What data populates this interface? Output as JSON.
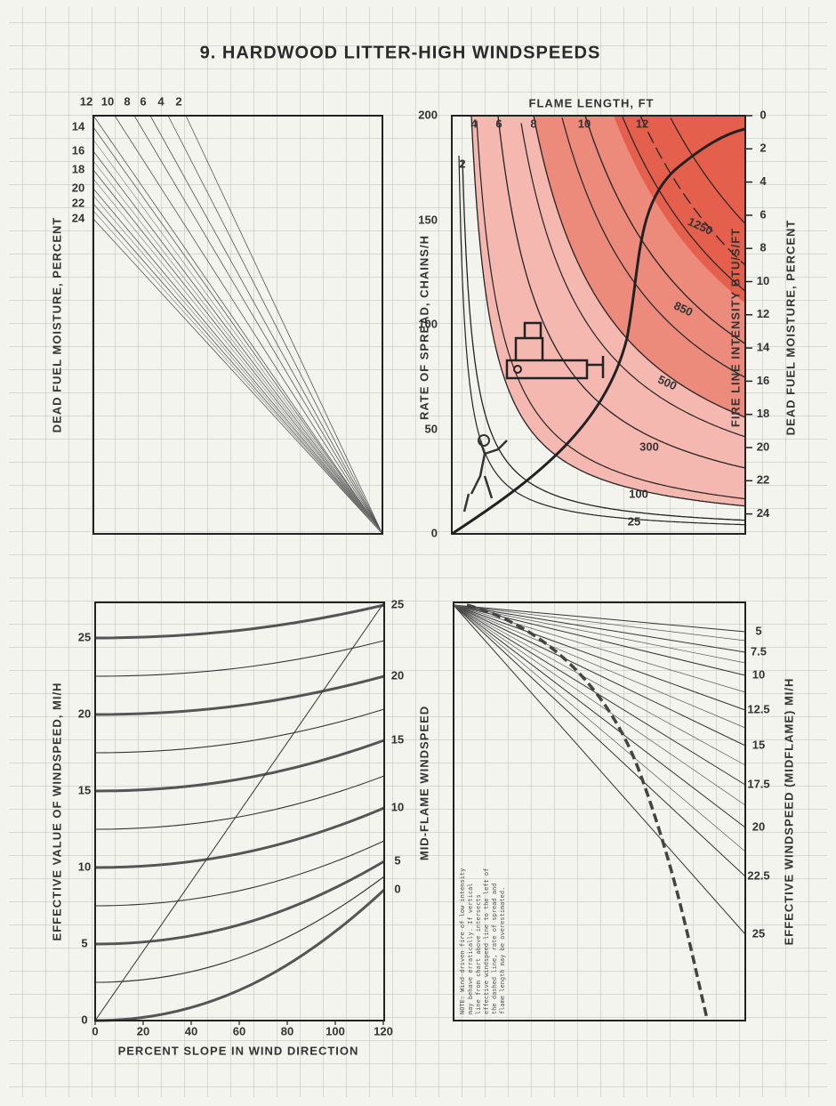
{
  "title": "9. HARDWOOD LITTER-HIGH WINDSPEEDS",
  "panels": [
    {
      "axis_title": "DEAD FUEL MOISTURE, PERCENT",
      "top_labels": [
        "12",
        "10",
        "8",
        "6",
        "4",
        "2"
      ],
      "side_labels": [
        "14",
        "16",
        "18",
        "20",
        "22",
        "24"
      ]
    },
    {
      "axis_title": "RATE OF SPREAD, CHAINS/H",
      "top_title": "FLAME LENGTH, FT",
      "left_ticks": [
        "0",
        "50",
        "100",
        "150",
        "200"
      ],
      "flame_labels": [
        "2",
        "4",
        "6",
        "8",
        "10",
        "12"
      ],
      "intensity_labels": [
        "25",
        "100",
        "300",
        "500",
        "850",
        "1250"
      ],
      "intensity_title": "FIRE LINE INTENSITY BTU/S/FT",
      "right_title": "DEAD FUEL MOISTURE, PERCENT",
      "right_ticks": [
        "0",
        "2",
        "4",
        "6",
        "8",
        "10",
        "12",
        "14",
        "16",
        "18",
        "20",
        "22",
        "24"
      ]
    },
    {
      "y_title": "EFFECTIVE VALUE OF WINDSPEED, MI/H",
      "x_title": "PERCENT SLOPE IN WIND DIRECTION",
      "y_ticks": [
        "0",
        "5",
        "10",
        "15",
        "20",
        "25"
      ],
      "x_ticks": [
        "0",
        "20",
        "40",
        "60",
        "80",
        "100",
        "120"
      ],
      "right_title": "MID-FLAME WINDSPEED",
      "right_labels": [
        "25",
        "20",
        "15",
        "10",
        "5",
        "0"
      ]
    },
    {
      "right_title": "EFFECTIVE WINDSPEED (MIDFLAME) MI/H",
      "right_labels": [
        "5",
        "7.5",
        "10",
        "12.5",
        "15",
        "17.5",
        "20",
        "22.5",
        "25"
      ],
      "note_lines": [
        "NOTE: Wind-driven fire of low intensity",
        "may behave erratically. If vertical",
        "line from chart above intersects",
        "effective windspeed line to the left of",
        "the dashed line, rate of spread and",
        "flame length may be overestimated."
      ]
    }
  ]
}
